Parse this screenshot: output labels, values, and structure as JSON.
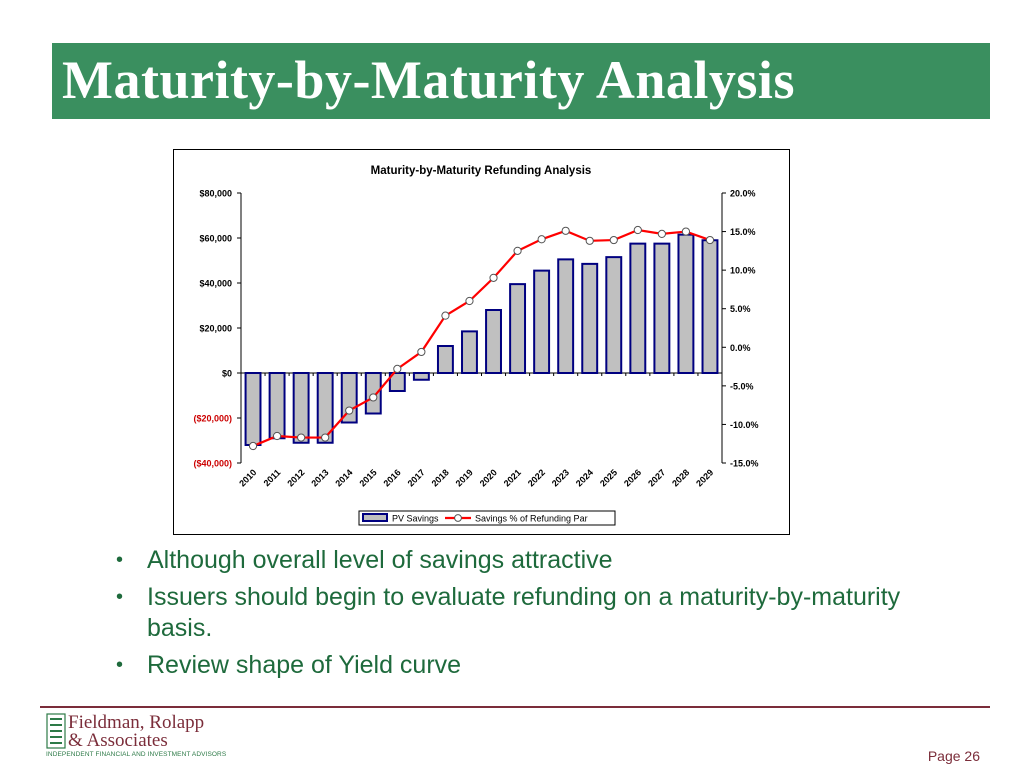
{
  "slide": {
    "title": "Maturity-by-Maturity Analysis",
    "bullets": [
      "Although overall level of savings attractive",
      "Issuers should begin to evaluate refunding on a maturity-by-maturity basis.",
      "Review shape of Yield curve"
    ],
    "bullet_glyph": "•",
    "page_label": "Page 26"
  },
  "logo": {
    "line1": "Fieldman, Rolapp",
    "line2": "& Associates",
    "tagline": "INDEPENDENT FINANCIAL AND INVESTMENT ADVISORS"
  },
  "colors": {
    "title_bar": "#3a8f5f",
    "bullet_text": "#1e6a3c",
    "accent_maroon": "#7b2d3a",
    "bar_fill": "#c0c0c0",
    "bar_stroke": "#000080",
    "line": "#ff0000"
  },
  "chart_data": {
    "type": "bar+line",
    "title": "Maturity-by-Maturity Refunding Analysis",
    "categories": [
      "2010",
      "2011",
      "2012",
      "2013",
      "2014",
      "2015",
      "2016",
      "2017",
      "2018",
      "2019",
      "2020",
      "2021",
      "2022",
      "2023",
      "2024",
      "2025",
      "2026",
      "2027",
      "2028",
      "2029"
    ],
    "series": [
      {
        "name": "PV Savings",
        "kind": "bar",
        "axis": "left",
        "values": [
          -32000,
          -29000,
          -31000,
          -31000,
          -22000,
          -18000,
          -8000,
          -3000,
          12000,
          18500,
          28000,
          39500,
          45500,
          50500,
          48500,
          51500,
          57500,
          57500,
          61500,
          59000
        ]
      },
      {
        "name": "Savings % of Refunding Par",
        "kind": "line",
        "axis": "right",
        "values": [
          -12.8,
          -11.5,
          -11.7,
          -11.7,
          -8.2,
          -6.5,
          -2.8,
          -0.6,
          4.1,
          6.0,
          9.0,
          12.5,
          14.0,
          15.1,
          13.8,
          13.9,
          15.2,
          14.7,
          15.0,
          13.9
        ]
      }
    ],
    "y_left": {
      "min": -40000,
      "max": 80000,
      "step": 20000,
      "tick_labels": [
        "$80,000",
        "$60,000",
        "$40,000",
        "$20,000",
        "$0",
        "($20,000)",
        "($40,000)"
      ]
    },
    "y_right": {
      "min": -15,
      "max": 20,
      "step": 5,
      "tick_labels": [
        "20.0%",
        "15.0%",
        "10.0%",
        "5.0%",
        "0.0%",
        "-5.0%",
        "-10.0%",
        "-15.0%"
      ]
    },
    "legend_position": "bottom",
    "grid": false
  }
}
